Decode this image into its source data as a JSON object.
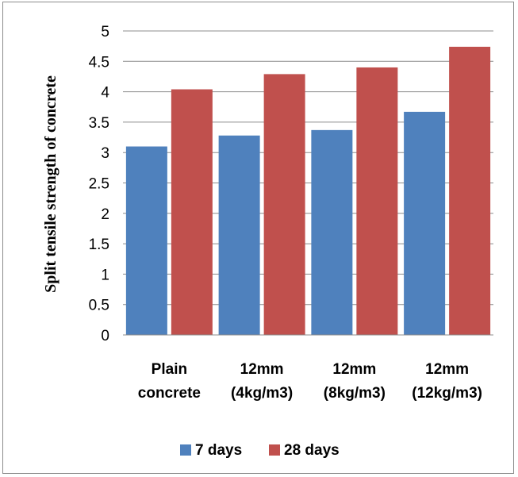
{
  "chart_data": {
    "type": "bar",
    "categories": [
      [
        "Plain",
        "concrete"
      ],
      [
        "12mm",
        "(4kg/m3)"
      ],
      [
        "12mm",
        "(8kg/m3)"
      ],
      [
        "12mm",
        "(12kg/m3)"
      ]
    ],
    "series": [
      {
        "name": "7 days",
        "color": "#4f81bd",
        "values": [
          3.1,
          3.28,
          3.37,
          3.67
        ]
      },
      {
        "name": "28 days",
        "color": "#c0504d",
        "values": [
          4.04,
          4.29,
          4.4,
          4.74
        ]
      }
    ],
    "ylabel": "Split tensile strength of concrete",
    "xlabel": "",
    "ylim": [
      0,
      5
    ],
    "yticks": [
      "0",
      "0.5",
      "1",
      "1.5",
      "2",
      "2.5",
      "3",
      "3.5",
      "4",
      "4.5",
      "5"
    ],
    "grid": true,
    "legend": "bottom"
  }
}
